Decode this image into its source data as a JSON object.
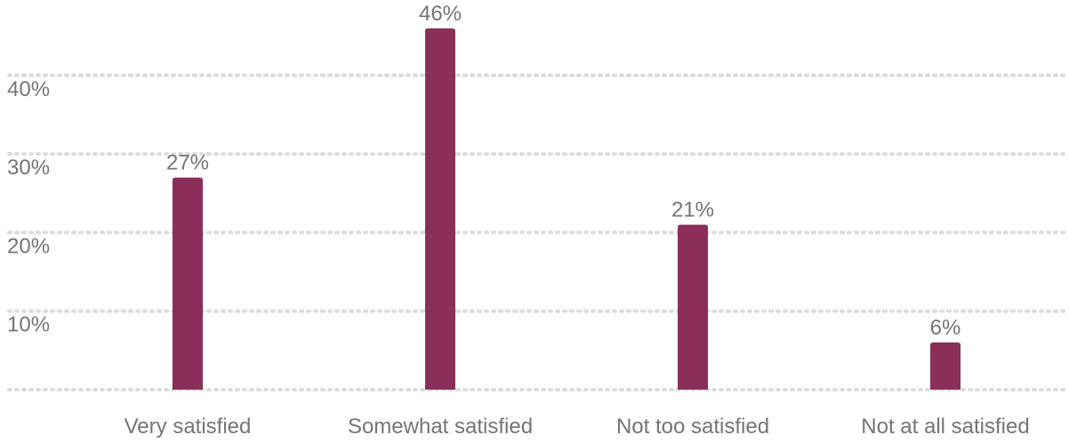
{
  "chart_data": {
    "type": "bar",
    "title": "",
    "xlabel": "",
    "ylabel": "",
    "categories": [
      "Very satisfied",
      "Somewhat satisfied",
      "Not too satisfied",
      "Not at all satisfied"
    ],
    "values": [
      27,
      46,
      21,
      6
    ],
    "value_labels": [
      "27%",
      "46%",
      "21%",
      "6%"
    ],
    "ylim": [
      0,
      50
    ],
    "yticks": [
      0,
      10,
      20,
      30,
      40,
      50
    ],
    "ytick_labels": [
      "",
      "10%",
      "20%",
      "30%",
      "40%",
      ""
    ],
    "grid": true,
    "bar_color": "#8b2f5a",
    "gridline_color": "#dcdcdc",
    "text_color": "#757575"
  }
}
